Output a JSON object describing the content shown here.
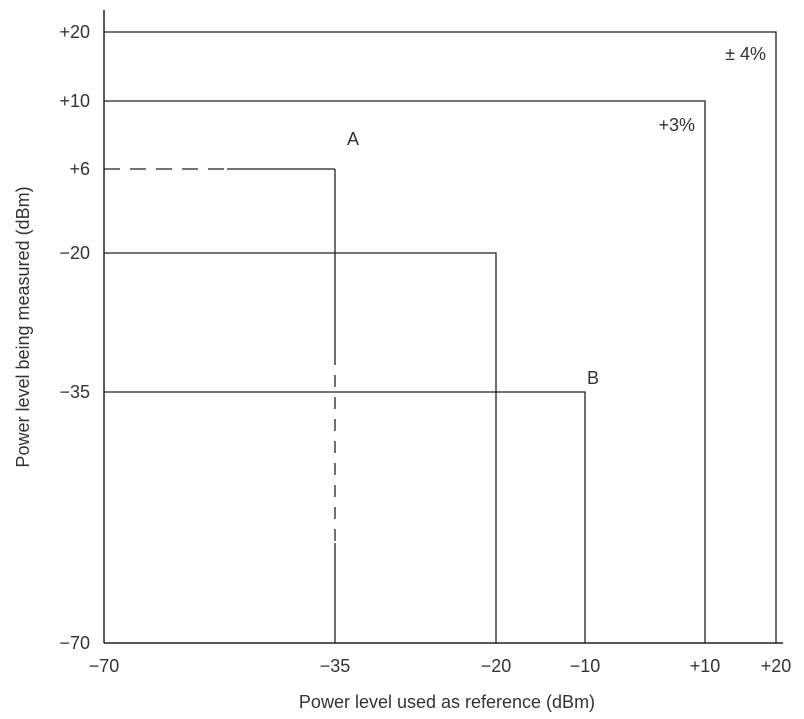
{
  "chart_data": {
    "type": "diagram",
    "xlabel": "Power level used as reference (dBm)",
    "ylabel": "Power level being measured (dBm)",
    "x_ticks": [
      {
        "value": -70,
        "label": "−70"
      },
      {
        "value": -35,
        "label": "−35"
      },
      {
        "value": -20,
        "label": "−20"
      },
      {
        "value": -10,
        "label": "−10"
      },
      {
        "value": 10,
        "label": "+10"
      },
      {
        "value": 20,
        "label": "+20"
      }
    ],
    "y_ticks": [
      {
        "value": 20,
        "label": "+20"
      },
      {
        "value": 10,
        "label": "+10"
      },
      {
        "value": 6,
        "label": "+6"
      },
      {
        "value": -20,
        "label": "−20"
      },
      {
        "value": -35,
        "label": "−35"
      },
      {
        "value": -70,
        "label": "−70"
      }
    ],
    "regions": [
      {
        "x": 20,
        "y": 20,
        "label": "± 4%",
        "dashed": false
      },
      {
        "x": 10,
        "y": 10,
        "label": "+3%",
        "dashed": false
      },
      {
        "x": -35,
        "y": 6,
        "label": "A",
        "dashed": true
      },
      {
        "x": -20,
        "y": -20,
        "label": "",
        "dashed": false
      },
      {
        "x": -10,
        "y": -35,
        "label": "B",
        "dashed": false
      }
    ]
  }
}
